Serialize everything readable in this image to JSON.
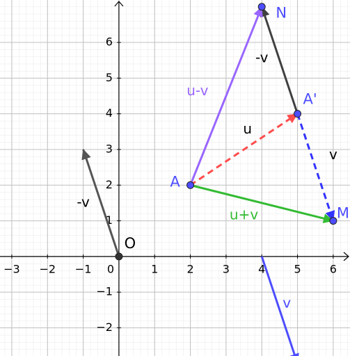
{
  "chart_data": {
    "type": "vector",
    "xlim": [
      -3.33,
      6.47
    ],
    "ylim": [
      -2.79,
      7.19
    ],
    "xticks": [
      {
        "value": -3,
        "label": "−3"
      },
      {
        "value": -2,
        "label": "−2"
      },
      {
        "value": -1,
        "label": "−1"
      },
      0,
      1,
      2,
      3,
      4,
      5,
      6
    ],
    "yticks": [
      {
        "value": -2,
        "label": "−2"
      },
      {
        "value": -1,
        "label": "−1"
      },
      1,
      2,
      3,
      4,
      5,
      6
    ],
    "grid": true,
    "minor_grid_divisions": 5,
    "points": [
      {
        "label": "O",
        "x": 0,
        "y": 0,
        "color": "#333333",
        "label_color": "#000000"
      },
      {
        "label": "A",
        "x": 2,
        "y": 2,
        "color": "#4d4dff",
        "label_color": "#4d4dff"
      },
      {
        "label": "A'",
        "x": 5,
        "y": 4,
        "color": "#4d4dff",
        "label_color": "#4d4dff"
      },
      {
        "label": "M",
        "x": 6,
        "y": 1,
        "color": "#4d4dff",
        "label_color": "#4d4dff"
      },
      {
        "label": "N",
        "x": 4,
        "y": 7,
        "color": "#4d4dff",
        "label_color": "#4d4dff"
      }
    ],
    "vectors": [
      {
        "label": "u",
        "from": [
          2,
          2
        ],
        "to": [
          5,
          4
        ],
        "color": "#ff4d4d",
        "label_color": "#000000",
        "dashed": true
      },
      {
        "label": "v",
        "from": [
          5,
          4
        ],
        "to": [
          6,
          1
        ],
        "color": "#3333ff",
        "label_color": "#000000",
        "dashed": true
      },
      {
        "label": "-v",
        "from": [
          5,
          4
        ],
        "to": [
          4,
          7
        ],
        "color": "#404040",
        "label_color": "#000000",
        "dashed": false
      },
      {
        "label": "u-v",
        "from": [
          2,
          2
        ],
        "to": [
          4,
          7
        ],
        "color": "#9966ff",
        "label_color": "#9966ff",
        "dashed": false
      },
      {
        "label": "u+v",
        "from": [
          2,
          2
        ],
        "to": [
          6,
          1
        ],
        "color": "#33bb33",
        "label_color": "#33bb33",
        "dashed": false
      },
      {
        "label": "-v",
        "from": [
          0,
          0
        ],
        "to": [
          -1,
          3
        ],
        "color": "#555555",
        "label_color": "#000000",
        "dashed": false
      },
      {
        "label": "v",
        "from": [
          4,
          0
        ],
        "to": [
          5,
          -3
        ],
        "color": "#4d4dff",
        "label_color": "#4d4dff",
        "dashed": false
      }
    ]
  }
}
